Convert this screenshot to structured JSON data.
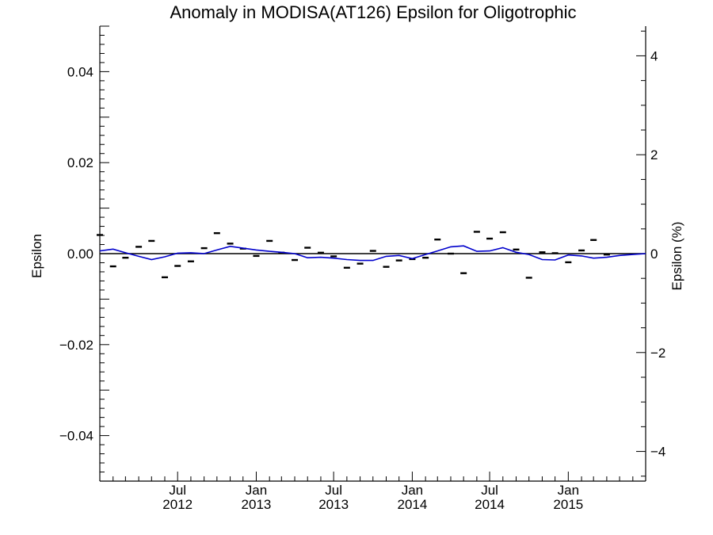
{
  "chart_data": {
    "type": "scatter",
    "title": "Anomaly in MODISA(AT126) Epsilon for Oligotrophic",
    "ylabel": "Epsilon",
    "y2label": "Epsilon (%)",
    "xlim": [
      "2012-01-01",
      "2015-07-01"
    ],
    "ylim": [
      -0.05,
      0.05
    ],
    "y2lim": [
      -4.6,
      4.6
    ],
    "yticks": [
      {
        "value": 0.04,
        "label": "0.04"
      },
      {
        "value": 0.02,
        "label": "0.02"
      },
      {
        "value": 0.0,
        "label": "0.00"
      },
      {
        "value": -0.02,
        "label": "−0.02"
      },
      {
        "value": -0.04,
        "label": "−0.04"
      }
    ],
    "y2ticks": [
      {
        "value": 4,
        "label": "4"
      },
      {
        "value": 2,
        "label": "2"
      },
      {
        "value": 0,
        "label": "0"
      },
      {
        "value": -2,
        "label": "−2"
      },
      {
        "value": -4,
        "label": "−4"
      }
    ],
    "xticks": [
      {
        "date": "2012-07-01",
        "month": "Jul",
        "year": "2012"
      },
      {
        "date": "2013-01-01",
        "month": "Jan",
        "year": "2013"
      },
      {
        "date": "2013-07-01",
        "month": "Jul",
        "year": "2013"
      },
      {
        "date": "2014-01-01",
        "month": "Jan",
        "year": "2014"
      },
      {
        "date": "2014-07-01",
        "month": "Jul",
        "year": "2014"
      },
      {
        "date": "2015-01-01",
        "month": "Jan",
        "year": "2015"
      }
    ],
    "grid": false,
    "series": [
      {
        "kind": "points",
        "color": "#000000",
        "x": [
          "2012-01-01",
          "2012-02-01",
          "2012-03-01",
          "2012-04-01",
          "2012-05-01",
          "2012-06-01",
          "2012-07-01",
          "2012-08-01",
          "2012-09-01",
          "2012-10-01",
          "2012-11-01",
          "2012-12-01",
          "2013-01-01",
          "2013-02-01",
          "2013-03-01",
          "2013-04-01",
          "2013-05-01",
          "2013-06-01",
          "2013-07-01",
          "2013-08-01",
          "2013-09-01",
          "2013-10-01",
          "2013-11-01",
          "2013-12-01",
          "2014-01-01",
          "2014-02-01",
          "2014-03-01",
          "2014-04-01",
          "2014-05-01",
          "2014-06-01",
          "2014-07-01",
          "2014-08-01",
          "2014-09-01",
          "2014-10-01",
          "2014-11-01",
          "2014-12-01",
          "2015-01-01",
          "2015-02-01",
          "2015-03-01",
          "2015-04-01"
        ],
        "y": [
          0.0041,
          -0.0028,
          -0.0009,
          0.0015,
          0.0028,
          -0.0052,
          -0.0027,
          -0.0017,
          0.0012,
          0.0045,
          0.0022,
          0.0011,
          -0.0005,
          0.0028,
          0.0002,
          -0.0014,
          0.0013,
          0.0002,
          -0.0006,
          -0.0031,
          -0.0022,
          0.0006,
          -0.0029,
          -0.0015,
          -0.0012,
          -0.0009,
          0.0031,
          0.0,
          -0.0043,
          0.0048,
          0.0033,
          0.0047,
          0.0009,
          -0.0053,
          0.0003,
          0.0001,
          -0.0019,
          0.0007,
          0.003,
          -0.0002
        ]
      },
      {
        "kind": "line",
        "color": "#0000cc",
        "x": [
          "2012-01-01",
          "2012-02-01",
          "2012-03-01",
          "2012-04-01",
          "2012-05-01",
          "2012-06-01",
          "2012-07-01",
          "2012-08-01",
          "2012-09-01",
          "2012-10-01",
          "2012-11-01",
          "2012-12-01",
          "2013-01-01",
          "2013-02-01",
          "2013-03-01",
          "2013-04-01",
          "2013-05-01",
          "2013-06-01",
          "2013-07-01",
          "2013-08-01",
          "2013-09-01",
          "2013-10-01",
          "2013-11-01",
          "2013-12-01",
          "2014-01-01",
          "2014-02-01",
          "2014-03-01",
          "2014-04-01",
          "2014-05-01",
          "2014-06-01",
          "2014-07-01",
          "2014-08-01",
          "2014-09-01",
          "2014-10-01",
          "2014-11-01",
          "2014-12-01",
          "2015-01-01",
          "2015-02-01",
          "2015-03-01",
          "2015-04-01",
          "2015-05-01",
          "2015-06-01",
          "2015-07-01"
        ],
        "y": [
          0.0006,
          0.001,
          0.0002,
          -0.0006,
          -0.0013,
          -0.0007,
          0.0001,
          0.0002,
          0.0,
          0.0008,
          0.0016,
          0.0012,
          0.0008,
          0.0005,
          0.0003,
          0.0,
          -0.0009,
          -0.0008,
          -0.001,
          -0.0013,
          -0.0015,
          -0.0015,
          -0.0006,
          -0.0004,
          -0.0011,
          -0.0002,
          0.0006,
          0.0015,
          0.0017,
          0.0005,
          0.0006,
          0.0013,
          0.0003,
          -0.0002,
          -0.0013,
          -0.0014,
          -0.0003,
          -0.0005,
          -0.001,
          -0.0008,
          -0.0004,
          -0.0002,
          0.0
        ]
      }
    ]
  }
}
